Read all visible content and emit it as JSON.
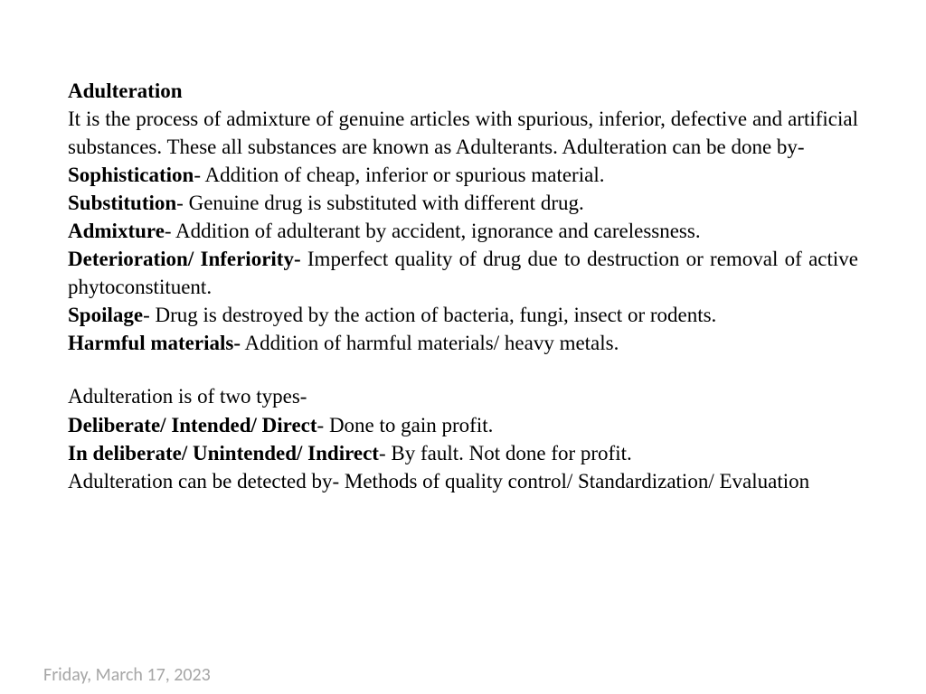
{
  "title": "Adulteration",
  "intro": "It is the process of admixture of genuine articles with spurious, inferior, defective and artificial substances. These all substances are known as Adulterants. Adulteration can be done by-",
  "methods": {
    "sophistication": {
      "term": "Sophistication",
      "desc": "- Addition of cheap, inferior or spurious material."
    },
    "substitution": {
      "term": "Substitution",
      "desc": "- Genuine drug is substituted with different drug."
    },
    "admixture": {
      "term": "Admixture",
      "desc": "- Addition of adulterant by accident, ignorance and carelessness."
    },
    "deterioration": {
      "term": "Deterioration/ Inferiority-",
      "desc": " Imperfect quality of drug due to destruction or removal of active phytoconstituent."
    },
    "spoilage": {
      "term": "Spoilage",
      "desc": "- Drug is destroyed by the action of bacteria, fungi, insect or rodents."
    },
    "harmful": {
      "term": "Harmful materials-",
      "desc": " Addition  of harmful materials/ heavy metals."
    }
  },
  "types_intro": "Adulteration is of two types-",
  "types": {
    "deliberate": {
      "term": "Deliberate/ Intended/ Direct",
      "desc": "- Done to gain profit."
    },
    "indeliberate": {
      "term": "In deliberate/ Unintended/ Indirect",
      "desc": "- By fault. Not done for profit."
    }
  },
  "detection": "Adulteration can be detected by- Methods of quality control/ Standardization/ Evaluation",
  "footer_date": "Friday, March 17, 2023"
}
